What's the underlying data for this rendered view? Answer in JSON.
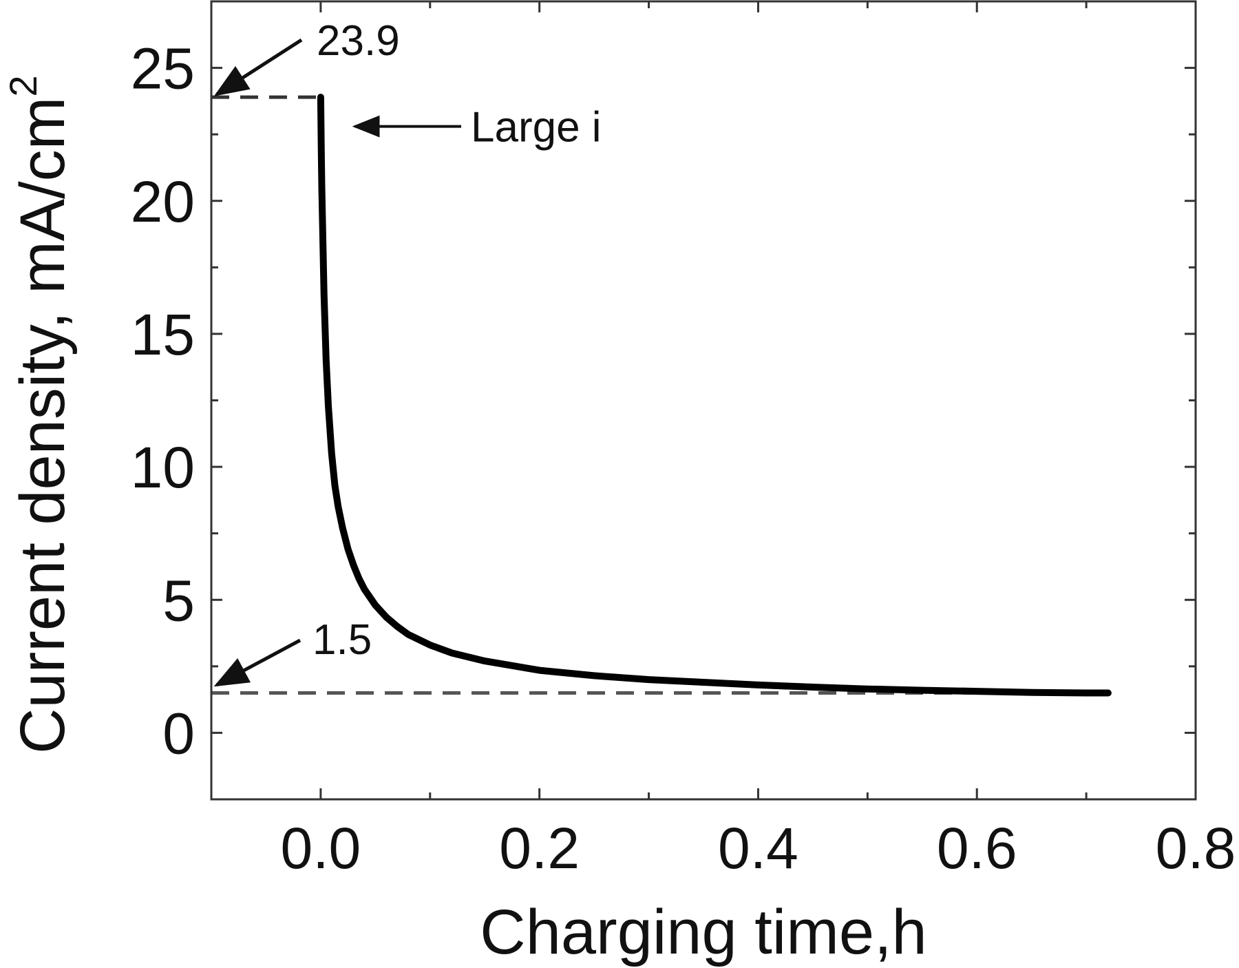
{
  "chart_data": {
    "type": "line",
    "title": "",
    "xlabel": "Charging time,h",
    "ylabel_main": "Current density, mA/cm",
    "ylabel_superscript": "2",
    "xlim": [
      -0.1,
      0.8
    ],
    "ylim": [
      -2.5,
      27.5
    ],
    "xticks": [
      0.0,
      0.2,
      0.4,
      0.6,
      0.8
    ],
    "xtick_labels": [
      "0.0",
      "0.2",
      "0.4",
      "0.6",
      "0.8"
    ],
    "yticks": [
      0,
      5,
      10,
      15,
      20,
      25
    ],
    "ytick_labels": [
      "0",
      "5",
      "10",
      "15",
      "20",
      "25"
    ],
    "grid": false,
    "legend": "none",
    "series": [
      {
        "color": "#000000",
        "x": [
          0.0,
          0.0005,
          0.001,
          0.002,
          0.003,
          0.005,
          0.007,
          0.01,
          0.013,
          0.016,
          0.02,
          0.025,
          0.03,
          0.035,
          0.04,
          0.05,
          0.06,
          0.07,
          0.08,
          0.1,
          0.12,
          0.15,
          0.2,
          0.25,
          0.3,
          0.35,
          0.4,
          0.45,
          0.5,
          0.55,
          0.6,
          0.65,
          0.7,
          0.72
        ],
        "y": [
          23.9,
          22.0,
          20.5,
          18.5,
          16.5,
          14.0,
          12.3,
          10.5,
          9.3,
          8.5,
          7.7,
          6.9,
          6.3,
          5.8,
          5.4,
          4.8,
          4.35,
          4.0,
          3.7,
          3.3,
          3.0,
          2.7,
          2.35,
          2.15,
          2.0,
          1.9,
          1.8,
          1.72,
          1.65,
          1.6,
          1.56,
          1.52,
          1.5,
          1.5
        ]
      }
    ],
    "reference_lines": [
      {
        "y": 23.9,
        "x_end": 0.0,
        "style": "dashed",
        "color": "#333333"
      },
      {
        "y": 1.5,
        "x_end": 0.72,
        "style": "dashed",
        "color": "#555555"
      }
    ],
    "annotations": [
      {
        "text": "23.9",
        "points_to": {
          "x": -0.1,
          "y": 23.9
        }
      },
      {
        "text": "Large i",
        "points_to": {
          "x": 0.025,
          "y": 22.8
        }
      },
      {
        "text": "1.5",
        "points_to": {
          "x": -0.1,
          "y": 1.8
        }
      }
    ]
  }
}
